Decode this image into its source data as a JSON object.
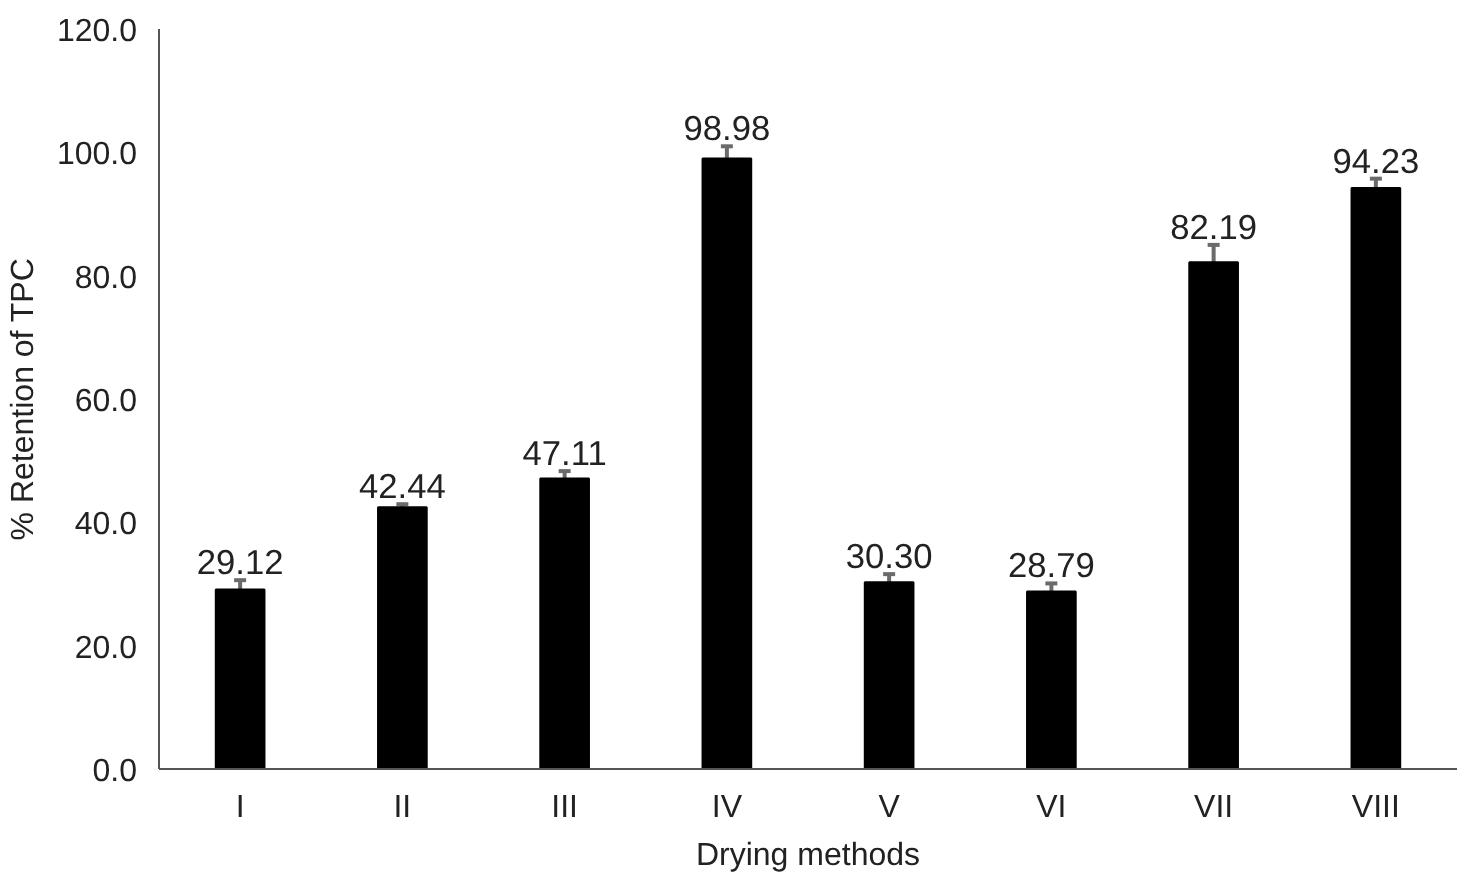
{
  "chart_data": {
    "type": "bar",
    "xlabel": "Drying methods",
    "ylabel": "% Retention of TPC",
    "categories": [
      "I",
      "II",
      "III",
      "IV",
      "V",
      "VI",
      "VII",
      "VIII"
    ],
    "values": [
      29.12,
      42.44,
      47.11,
      98.98,
      30.3,
      28.79,
      82.19,
      94.23
    ],
    "value_labels": [
      "29.12",
      "42.44",
      "47.11",
      "98.98",
      "30.30",
      "28.79",
      "82.19",
      "94.23"
    ],
    "errors": [
      1.5,
      0.5,
      1.2,
      2.0,
      1.3,
      1.3,
      2.8,
      1.5
    ],
    "color": "#000000",
    "ylim": [
      0,
      120
    ],
    "yticks": [
      {
        "value": 0,
        "label": "0.0"
      },
      {
        "value": 20,
        "label": "20.0"
      },
      {
        "value": 40,
        "label": "40.0"
      },
      {
        "value": 60,
        "label": "60.0"
      },
      {
        "value": 80,
        "label": "80.0"
      },
      {
        "value": 100,
        "label": "100.0"
      },
      {
        "value": 120,
        "label": "120.0"
      }
    ],
    "grid": false
  }
}
